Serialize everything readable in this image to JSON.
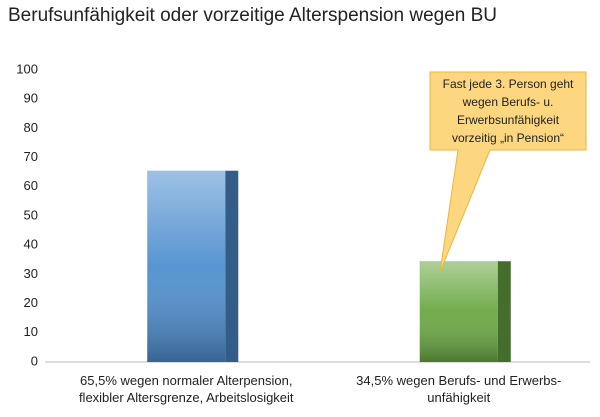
{
  "chart_data": {
    "type": "bar",
    "title": "Berufsunfähigkeit oder vorzeitige Alterspension wegen BU",
    "categories": [
      "65,5% wegen normaler Alterpension,\nflexibler Altersgrenze, Arbeitslosigkeit",
      "34,5% wegen Berufs- und Erwerbs-\nunfähigkeit"
    ],
    "values": [
      65.5,
      34.5
    ],
    "colors": [
      "#4f8fcf",
      "#6aa843"
    ],
    "ylim": [
      0,
      100
    ],
    "yticks": [
      0,
      10,
      20,
      30,
      40,
      50,
      60,
      70,
      80,
      90,
      100
    ],
    "grid": false,
    "annotation": "Fast jede 3. Person geht\nwegen Berufs- u.\nErwerbsunfähigkeit\nvorzeitig „in Pension“"
  }
}
